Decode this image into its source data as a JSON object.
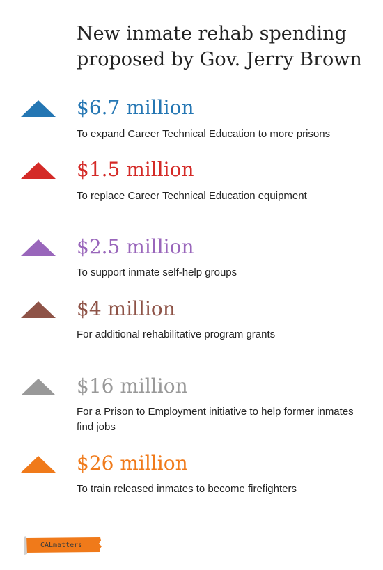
{
  "title": "New inmate rehab spending proposed by Gov. Jerry Brown",
  "items": [
    {
      "amount": "$6.7 million",
      "description": "To expand Career Technical Education to more prisons",
      "color": "#2476b3"
    },
    {
      "amount": "$1.5 million",
      "description": "To replace Career Technical Education equipment",
      "color": "#d42a27"
    },
    {
      "amount": "$2.5 million",
      "description": "To support inmate self-help groups",
      "color": "#9966bb"
    },
    {
      "amount": "$4 million",
      "description": "For additional rehabilitative program grants",
      "color": "#8e5347"
    },
    {
      "amount": "$16 million",
      "description": "For a Prison to Employment initiative to help former inmates find jobs",
      "color": "#999999"
    },
    {
      "amount": "$26 million",
      "description": "To train released inmates to become firefighters",
      "color": "#f07a1a"
    }
  ],
  "logo": {
    "text": "CALmatters",
    "color": "#f07a1a",
    "icon": "calmatters-torn-paper-logo"
  }
}
